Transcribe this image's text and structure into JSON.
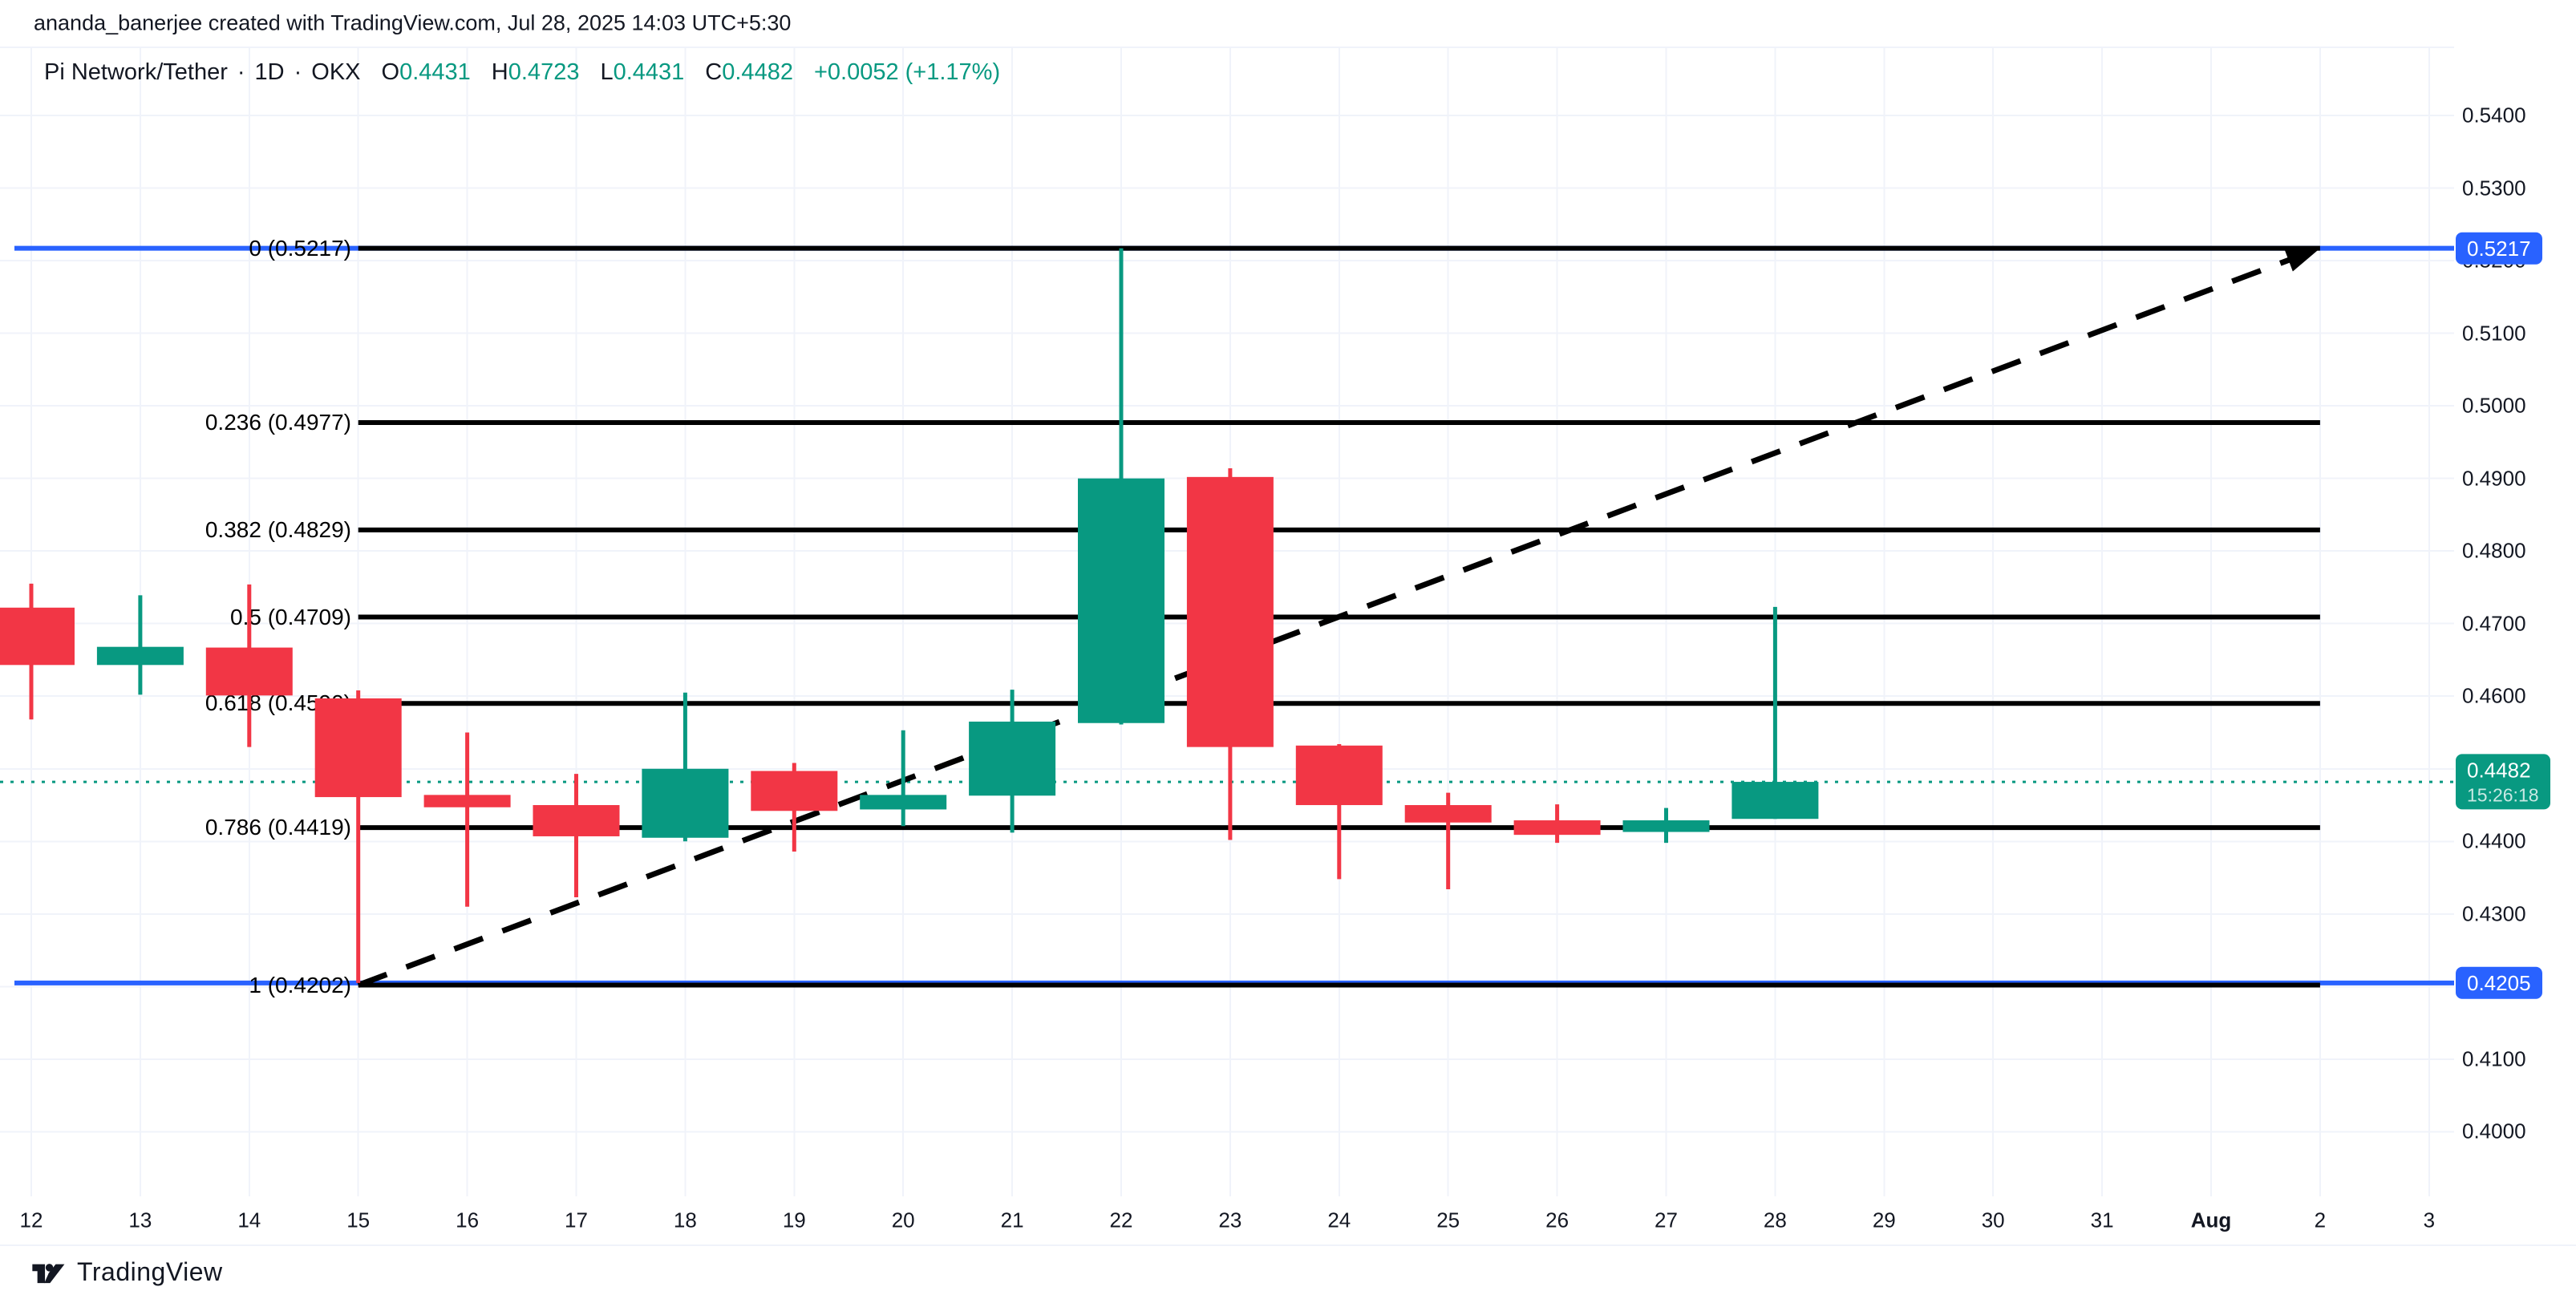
{
  "attribution": "ananda_banerjee created with TradingView.com, Jul 28, 2025 14:03 UTC+5:30",
  "legend": {
    "symbol": "Pi Network/Tether",
    "dot": "·",
    "interval": "1D",
    "exchange": "OKX",
    "ohlc": [
      {
        "label": "O",
        "value": "0.4431"
      },
      {
        "label": "H",
        "value": "0.4723"
      },
      {
        "label": "L",
        "value": "0.4431"
      },
      {
        "label": "C",
        "value": "0.4482"
      }
    ],
    "change": "+0.0052 (+1.17%)"
  },
  "footer": {
    "brand": "TradingView"
  },
  "price_axis": {
    "ticks": [
      "0.5400",
      "0.5300",
      "0.5200",
      "0.5100",
      "0.5000",
      "0.4900",
      "0.4800",
      "0.4700",
      "0.4600",
      "0.4500",
      "0.4400",
      "0.4300",
      "0.4200",
      "0.4100",
      "0.4000"
    ]
  },
  "time_axis": {
    "labels": [
      {
        "text": "12"
      },
      {
        "text": "13"
      },
      {
        "text": "14"
      },
      {
        "text": "15"
      },
      {
        "text": "16"
      },
      {
        "text": "17"
      },
      {
        "text": "18"
      },
      {
        "text": "19"
      },
      {
        "text": "20"
      },
      {
        "text": "21"
      },
      {
        "text": "22"
      },
      {
        "text": "23"
      },
      {
        "text": "24"
      },
      {
        "text": "25"
      },
      {
        "text": "26"
      },
      {
        "text": "27"
      },
      {
        "text": "28"
      },
      {
        "text": "29"
      },
      {
        "text": "30"
      },
      {
        "text": "31"
      },
      {
        "text": "Aug",
        "bold": true
      },
      {
        "text": "2"
      },
      {
        "text": "3"
      }
    ]
  },
  "chart_data": {
    "type": "candlestick",
    "symbol": "Pi Network/Tether",
    "interval": "1D",
    "exchange": "OKX",
    "y_range": [
      0.4,
      0.54
    ],
    "grid": true,
    "candles": [
      {
        "date": "Jul 12",
        "open": 0.4722,
        "high": 0.4755,
        "low": 0.4568,
        "close": 0.4643
      },
      {
        "date": "Jul 13",
        "open": 0.4643,
        "high": 0.4739,
        "low": 0.4602,
        "close": 0.4668
      },
      {
        "date": "Jul 14",
        "open": 0.4667,
        "high": 0.4754,
        "low": 0.453,
        "close": 0.4601
      },
      {
        "date": "Jul 15",
        "open": 0.4597,
        "high": 0.4608,
        "low": 0.4205,
        "close": 0.4461
      },
      {
        "date": "Jul 16",
        "open": 0.4464,
        "high": 0.455,
        "low": 0.431,
        "close": 0.4447
      },
      {
        "date": "Jul 17",
        "open": 0.445,
        "high": 0.4493,
        "low": 0.4323,
        "close": 0.4407
      },
      {
        "date": "Jul 18",
        "open": 0.4405,
        "high": 0.4605,
        "low": 0.44,
        "close": 0.45
      },
      {
        "date": "Jul 19",
        "open": 0.4497,
        "high": 0.4508,
        "low": 0.4386,
        "close": 0.4442
      },
      {
        "date": "Jul 20",
        "open": 0.4444,
        "high": 0.4553,
        "low": 0.4421,
        "close": 0.4464
      },
      {
        "date": "Jul 21",
        "open": 0.4463,
        "high": 0.4609,
        "low": 0.4412,
        "close": 0.4565
      },
      {
        "date": "Jul 22",
        "open": 0.4563,
        "high": 0.5217,
        "low": 0.4561,
        "close": 0.49
      },
      {
        "date": "Jul 23",
        "open": 0.4902,
        "high": 0.4914,
        "low": 0.4402,
        "close": 0.453
      },
      {
        "date": "Jul 24",
        "open": 0.4532,
        "high": 0.4534,
        "low": 0.4348,
        "close": 0.445
      },
      {
        "date": "Jul 25",
        "open": 0.445,
        "high": 0.4467,
        "low": 0.4334,
        "close": 0.4426
      },
      {
        "date": "Jul 26",
        "open": 0.4429,
        "high": 0.4451,
        "low": 0.4398,
        "close": 0.4409
      },
      {
        "date": "Jul 27",
        "open": 0.4413,
        "high": 0.4446,
        "low": 0.4398,
        "close": 0.4429
      },
      {
        "date": "Jul 28",
        "open": 0.4431,
        "high": 0.4723,
        "low": 0.4431,
        "close": 0.4482
      }
    ],
    "fib_retracement": {
      "from_date": "Jul 15",
      "from_price": 0.4202,
      "to_date": "Aug 2",
      "to_price": 0.5217,
      "start_index": 3,
      "end_index": 21,
      "levels": [
        {
          "label": "0 (0.5217)",
          "ratio": 0,
          "price": 0.5217
        },
        {
          "label": "0.236 (0.4977)",
          "ratio": 0.236,
          "price": 0.4977
        },
        {
          "label": "0.382 (0.4829)",
          "ratio": 0.382,
          "price": 0.4829
        },
        {
          "label": "0.5 (0.4709)",
          "ratio": 0.5,
          "price": 0.4709
        },
        {
          "label": "0.618 (0.4590)",
          "ratio": 0.618,
          "price": 0.459
        },
        {
          "label": "0.786 (0.4419)",
          "ratio": 0.786,
          "price": 0.4419
        },
        {
          "label": "1 (0.4202)",
          "ratio": 1,
          "price": 0.4202
        }
      ]
    },
    "horizontal_lines": [
      {
        "price": 0.5217,
        "axis_label": "0.5217"
      },
      {
        "price": 0.4205,
        "axis_label": "0.4205"
      }
    ],
    "trend_line": {
      "from_index": 3,
      "from_price": 0.4202,
      "to_index": 21,
      "to_price": 0.5217,
      "style": "dashed",
      "arrow_end": true
    },
    "current_price": {
      "price": 0.4482,
      "label": "0.4482",
      "countdown": "15:26:18"
    }
  },
  "colors": {
    "up": "#089981",
    "down": "#F23645",
    "line_blue": "#2962FF",
    "fib_black": "#000000",
    "grid": "#F0F3FA",
    "axis_text": "#131722",
    "separator": "#E0E3EB",
    "background": "#FFFFFF"
  }
}
